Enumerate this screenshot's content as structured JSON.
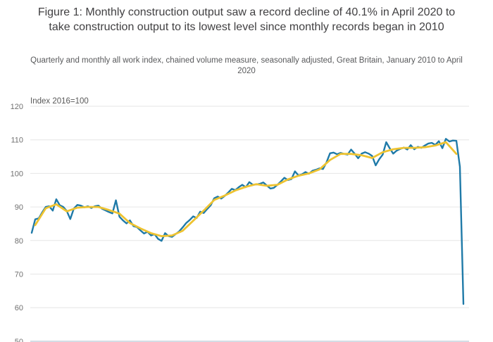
{
  "header": {
    "title": "Figure 1: Monthly construction output saw a record decline of 40.1% in April 2020 to take construction output to its lowest level since monthly records began in 2010",
    "subtitle": "Quarterly and monthly all work index, chained volume measure, seasonally adjusted, Great Britain, January 2010 to April 2020"
  },
  "chart_data": {
    "type": "line",
    "title": "Figure 1: Monthly construction output saw a record decline of 40.1% in April 2020 to take construction output to its lowest level since monthly records began in 2010",
    "subtitle": "Quarterly and monthly all work index, chained volume measure, seasonally adjusted, Great Britain, January 2010 to April 2020",
    "y_axis_title": "Index 2016=100",
    "yticks": [
      120,
      110,
      100,
      90,
      80,
      70,
      60,
      50
    ],
    "ylim": [
      50,
      122
    ],
    "x_start": "2010-01",
    "x_end": "2020-04",
    "grid": true,
    "legend_position": "none-visible",
    "key_fact": "Monthly decline of 40.1% in April 2020, index fell to 61.1",
    "colors": {
      "grid": "#e6e6e6",
      "baseline": "#c9d4df",
      "tick_text": "#707070",
      "axis_title_text": "#595959",
      "title_text": "#414042",
      "subtitle_text": "#58595b"
    },
    "series": [
      {
        "id": "monthly",
        "name": "Monthly all work index",
        "freq": "monthly",
        "color": "#1f7aa8",
        "width": 2.4,
        "values": [
          82.3,
          86.3,
          86.6,
          88.4,
          90.0,
          90.2,
          88.9,
          92.3,
          90.5,
          90.0,
          88.8,
          86.4,
          89.5,
          90.6,
          90.4,
          89.9,
          90.2,
          89.7,
          90.2,
          90.4,
          89.5,
          89.0,
          88.5,
          88.1,
          92.0,
          87.1,
          86.0,
          85.1,
          86.0,
          84.3,
          84.0,
          83.0,
          82.1,
          82.6,
          81.5,
          81.9,
          80.5,
          79.9,
          82.2,
          81.3,
          81.1,
          81.9,
          82.7,
          83.9,
          85.2,
          86.1,
          87.2,
          86.7,
          88.6,
          88.2,
          89.4,
          90.5,
          92.6,
          93.1,
          92.5,
          93.3,
          94.3,
          95.4,
          95.0,
          95.9,
          96.6,
          95.9,
          97.4,
          96.6,
          96.7,
          96.9,
          97.3,
          96.4,
          95.5,
          95.7,
          96.6,
          97.6,
          98.7,
          98.0,
          98.3,
          100.6,
          99.4,
          99.7,
          100.4,
          99.9,
          100.8,
          101.1,
          101.5,
          101.3,
          103.3,
          106.0,
          106.2,
          105.7,
          106.1,
          105.8,
          105.6,
          107.1,
          105.9,
          104.5,
          105.9,
          106.3,
          105.9,
          105.2,
          102.4,
          104.2,
          105.6,
          109.3,
          107.5,
          105.9,
          106.8,
          107.3,
          107.7,
          107.1,
          108.4,
          107.2,
          107.9,
          107.6,
          108.3,
          108.9,
          109.1,
          108.5,
          109.6,
          107.5,
          110.3,
          109.5,
          109.8,
          109.7,
          102.0,
          61.1
        ]
      },
      {
        "id": "quarterly",
        "name": "Quarterly all work index",
        "freq": "quarterly",
        "color": "#eec331",
        "width": 2.8,
        "values": [
          84.6,
          89.6,
          90.8,
          88.7,
          89.8,
          90.0,
          90.0,
          89.1,
          88.0,
          85.2,
          83.6,
          82.2,
          81.3,
          81.5,
          82.9,
          85.9,
          88.9,
          92.1,
          93.4,
          94.9,
          96.0,
          96.8,
          96.3,
          96.6,
          98.2,
          99.3,
          100.0,
          101.2,
          104.0,
          105.8,
          105.8,
          105.4,
          104.6,
          106.3,
          107.2,
          107.6,
          107.6,
          107.8,
          108.3,
          109.3,
          105.8
        ]
      }
    ]
  }
}
